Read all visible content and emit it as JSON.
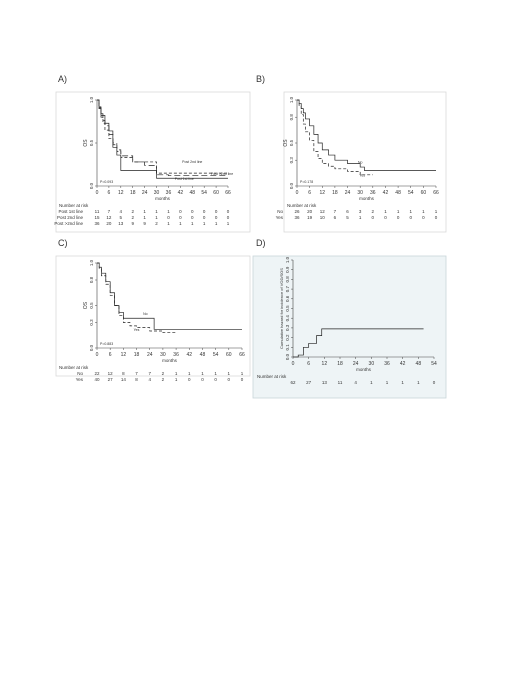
{
  "panels": [
    {
      "id": "A",
      "label": "A)",
      "shaded": false,
      "frame": [
        56,
        92,
        194,
        140
      ],
      "plot": [
        97,
        100,
        131,
        86
      ],
      "x_range": [
        0,
        66
      ],
      "y_range": [
        0,
        1
      ],
      "x_ticks": [
        "0",
        "6",
        "12",
        "18",
        "24",
        "30",
        "36",
        "42",
        "48",
        "54",
        "60",
        "66"
      ],
      "y_ticks": [
        "0.0",
        "0.5",
        "1.0"
      ],
      "xlabel": "months",
      "ylabel": "OS",
      "pvalue": "P=0.093",
      "risk_title": "Number at risk",
      "risk_rows": [
        {
          "label": "Post 1st line",
          "values": [
            "11",
            "7",
            "4",
            "2",
            "1",
            "1",
            "1",
            "0",
            "0",
            "0",
            "0",
            "0"
          ]
        },
        {
          "label": "Post 2nd line",
          "values": [
            "15",
            "12",
            "5",
            "2",
            "1",
            "1",
            "0",
            "0",
            "0",
            "0",
            "0",
            "0"
          ]
        },
        {
          "label": "Post >2nd line",
          "values": [
            "36",
            "20",
            "13",
            "9",
            "9",
            "2",
            "1",
            "1",
            "1",
            "1",
            "1",
            "1"
          ]
        }
      ],
      "series": [
        {
          "name": "Post 2nd line",
          "dash": "3,2",
          "label_at": [
            48,
            0.27
          ],
          "points": [
            [
              0,
              1
            ],
            [
              1,
              0.9
            ],
            [
              2,
              0.8
            ],
            [
              3,
              0.73
            ],
            [
              4,
              0.65
            ],
            [
              6,
              0.55
            ],
            [
              8,
              0.48
            ],
            [
              10,
              0.4
            ],
            [
              12,
              0.33
            ],
            [
              18,
              0.28
            ],
            [
              24,
              0.28
            ],
            [
              30,
              0.15
            ],
            [
              36,
              0.15
            ],
            [
              66,
              0.15
            ]
          ]
        },
        {
          "name": "Post >2nd line",
          "dash": "6,3",
          "label_at": [
            63,
            0.13
          ],
          "points": [
            [
              0,
              1
            ],
            [
              1,
              0.92
            ],
            [
              2,
              0.84
            ],
            [
              3,
              0.76
            ],
            [
              4,
              0.7
            ],
            [
              6,
              0.6
            ],
            [
              8,
              0.5
            ],
            [
              10,
              0.42
            ],
            [
              12,
              0.35
            ],
            [
              18,
              0.28
            ],
            [
              24,
              0.24
            ],
            [
              30,
              0.13
            ],
            [
              36,
              0.12
            ],
            [
              66,
              0.12
            ]
          ]
        },
        {
          "name": "Post 1st line",
          "dash": "",
          "label_at": [
            44,
            0.07
          ],
          "points": [
            [
              0,
              1
            ],
            [
              1,
              0.91
            ],
            [
              2,
              0.82
            ],
            [
              4,
              0.73
            ],
            [
              6,
              0.64
            ],
            [
              8,
              0.45
            ],
            [
              10,
              0.36
            ],
            [
              12,
              0.18
            ],
            [
              18,
              0.18
            ],
            [
              24,
              0.18
            ],
            [
              30,
              0.09
            ],
            [
              66,
              0.09
            ]
          ]
        }
      ]
    },
    {
      "id": "B",
      "label": "B)",
      "shaded": false,
      "frame": [
        284,
        92,
        162,
        140
      ],
      "plot": [
        297,
        100,
        139,
        86
      ],
      "x_range": [
        0,
        66
      ],
      "y_range": [
        0,
        1
      ],
      "x_ticks": [
        "0",
        "6",
        "12",
        "18",
        "24",
        "30",
        "36",
        "42",
        "48",
        "54",
        "60",
        "66"
      ],
      "y_ticks": [
        "0.0",
        "0.3",
        "0.5",
        "0.8",
        "1.0"
      ],
      "xlabel": "months",
      "ylabel": "OS",
      "pvalue": "P=0.178",
      "risk_title": "Number at risk",
      "risk_rows": [
        {
          "label": "No",
          "values": [
            "26",
            "20",
            "12",
            "7",
            "6",
            "3",
            "2",
            "1",
            "1",
            "1",
            "1",
            "1"
          ]
        },
        {
          "label": "Yes",
          "values": [
            "36",
            "19",
            "10",
            "6",
            "5",
            "1",
            "0",
            "0",
            "0",
            "0",
            "0",
            "0"
          ]
        }
      ],
      "series": [
        {
          "name": "No",
          "dash": "",
          "label_at": [
            30,
            0.26
          ],
          "points": [
            [
              0,
              1
            ],
            [
              1,
              0.96
            ],
            [
              2,
              0.9
            ],
            [
              3,
              0.85
            ],
            [
              4,
              0.78
            ],
            [
              6,
              0.7
            ],
            [
              8,
              0.6
            ],
            [
              10,
              0.5
            ],
            [
              12,
              0.42
            ],
            [
              15,
              0.36
            ],
            [
              18,
              0.3
            ],
            [
              24,
              0.26
            ],
            [
              30,
              0.22
            ],
            [
              32,
              0.18
            ],
            [
              66,
              0.18
            ]
          ]
        },
        {
          "name": "Yes",
          "dash": "3,2",
          "label_at": [
            31,
            0.11
          ],
          "points": [
            [
              0,
              1
            ],
            [
              1,
              0.93
            ],
            [
              2,
              0.83
            ],
            [
              3,
              0.72
            ],
            [
              4,
              0.63
            ],
            [
              6,
              0.53
            ],
            [
              8,
              0.4
            ],
            [
              10,
              0.32
            ],
            [
              12,
              0.26
            ],
            [
              15,
              0.23
            ],
            [
              18,
              0.2
            ],
            [
              24,
              0.17
            ],
            [
              30,
              0.13
            ],
            [
              36,
              0.13
            ]
          ]
        }
      ]
    },
    {
      "id": "C",
      "label": "C)",
      "shaded": false,
      "frame": [
        56,
        256,
        194,
        120
      ],
      "plot": [
        97,
        263,
        145,
        85
      ],
      "x_range": [
        0,
        66
      ],
      "y_range": [
        0,
        1
      ],
      "x_ticks": [
        "0",
        "6",
        "12",
        "18",
        "24",
        "30",
        "36",
        "42",
        "48",
        "54",
        "60",
        "66"
      ],
      "y_ticks": [
        "0.0",
        "0.3",
        "0.5",
        "0.8",
        "1.0"
      ],
      "xlabel": "months",
      "ylabel": "OS",
      "pvalue": "P=0.883",
      "risk_title": "Number at risk",
      "risk_rows": [
        {
          "label": "No",
          "values": [
            "22",
            "12",
            "8",
            "7",
            "7",
            "2",
            "1",
            "1",
            "1",
            "1",
            "1",
            "1"
          ]
        },
        {
          "label": "Yes",
          "values": [
            "40",
            "27",
            "14",
            "8",
            "4",
            "2",
            "1",
            "0",
            "0",
            "0",
            "0",
            "0"
          ]
        }
      ],
      "series": [
        {
          "name": "No",
          "dash": "",
          "label_at": [
            22,
            0.39
          ],
          "points": [
            [
              0,
              1
            ],
            [
              1,
              0.95
            ],
            [
              2,
              0.88
            ],
            [
              4,
              0.78
            ],
            [
              6,
              0.65
            ],
            [
              8,
              0.5
            ],
            [
              10,
              0.42
            ],
            [
              12,
              0.35
            ],
            [
              18,
              0.35
            ],
            [
              24,
              0.35
            ],
            [
              26,
              0.22
            ],
            [
              30,
              0.22
            ],
            [
              36,
              0.22
            ],
            [
              66,
              0.22
            ]
          ]
        },
        {
          "name": "Yes",
          "dash": "3,2",
          "label_at": [
            18,
            0.2
          ],
          "points": [
            [
              0,
              1
            ],
            [
              1,
              0.93
            ],
            [
              2,
              0.85
            ],
            [
              4,
              0.75
            ],
            [
              6,
              0.62
            ],
            [
              8,
              0.5
            ],
            [
              10,
              0.38
            ],
            [
              12,
              0.3
            ],
            [
              15,
              0.26
            ],
            [
              18,
              0.24
            ],
            [
              24,
              0.2
            ],
            [
              30,
              0.18
            ],
            [
              36,
              0.18
            ]
          ]
        }
      ]
    },
    {
      "id": "D",
      "label": "D)",
      "shaded": true,
      "frame": [
        253,
        256,
        193,
        142
      ],
      "plot": [
        293,
        260,
        141,
        97
      ],
      "x_range": [
        0,
        54
      ],
      "y_range": [
        0,
        1
      ],
      "x_ticks": [
        "0",
        "6",
        "12",
        "18",
        "24",
        "30",
        "36",
        "42",
        "48",
        "54"
      ],
      "y_ticks": [
        "0.0",
        "0.1",
        "0.2",
        "0.3",
        "0.4",
        "0.5",
        "0.6",
        "0.7",
        "0.8",
        "0.9",
        "1.0"
      ],
      "xlabel": "months",
      "ylabel": "Cumulative hazard for incidence of VOD/SOS",
      "pvalue": "",
      "risk_title": "Number at risk",
      "risk_rows": [
        {
          "label": "",
          "values": [
            "62",
            "27",
            "13",
            "11",
            "4",
            "1",
            "1",
            "1",
            "1",
            "0"
          ]
        }
      ],
      "series": [
        {
          "name": "",
          "dash": "",
          "label_at": null,
          "points": [
            [
              0,
              0
            ],
            [
              2,
              0
            ],
            [
              2,
              0.02
            ],
            [
              4,
              0.02
            ],
            [
              4,
              0.1
            ],
            [
              6,
              0.1
            ],
            [
              6,
              0.14
            ],
            [
              9,
              0.14
            ],
            [
              9,
              0.22
            ],
            [
              11,
              0.22
            ],
            [
              11,
              0.29
            ],
            [
              50,
              0.29
            ]
          ]
        }
      ]
    }
  ]
}
